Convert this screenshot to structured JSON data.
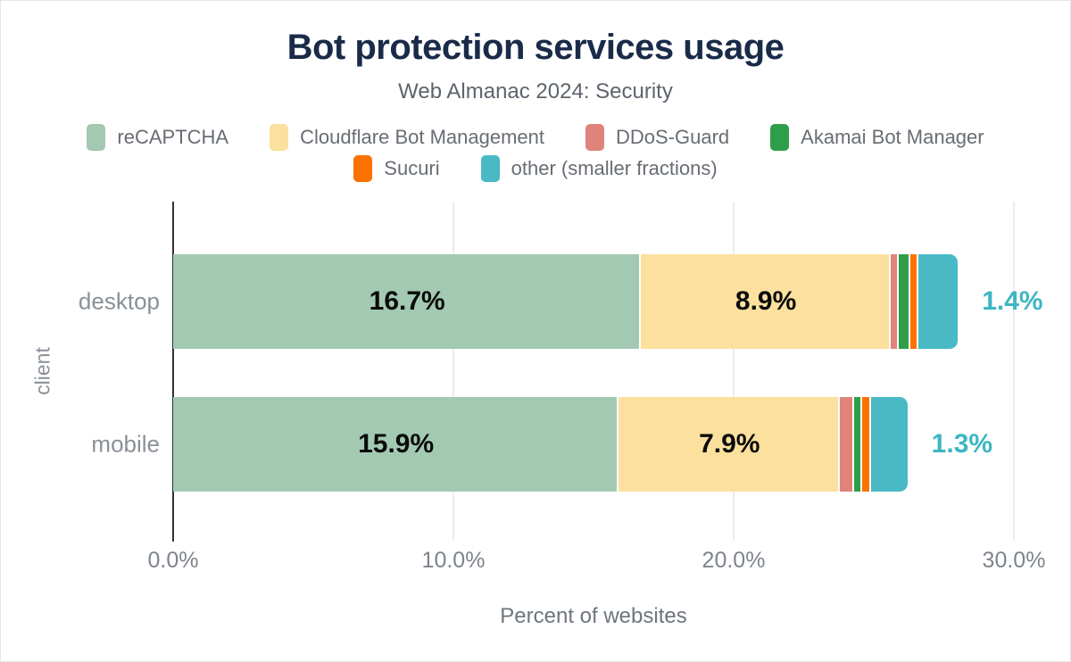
{
  "chart_data": {
    "type": "bar",
    "orientation": "horizontal-stacked",
    "title": "Bot protection services usage",
    "subtitle": "Web Almanac 2024: Security",
    "categories": [
      "desktop",
      "mobile"
    ],
    "series": [
      {
        "name": "reCAPTCHA",
        "color": "#a3c9b3",
        "values": [
          16.7,
          15.9
        ],
        "labels": [
          "16.7%",
          "15.9%"
        ]
      },
      {
        "name": "Cloudflare Bot Management",
        "color": "#fbe09e",
        "values": [
          8.9,
          7.9
        ],
        "labels": [
          "8.9%",
          "7.9%"
        ]
      },
      {
        "name": "DDoS-Guard",
        "color": "#e0837a",
        "values": [
          0.3,
          0.5
        ],
        "labels": null
      },
      {
        "name": "Akamai Bot Manager",
        "color": "#2f9e4a",
        "values": [
          0.4,
          0.3
        ],
        "labels": null
      },
      {
        "name": "Sucuri",
        "color": "#fa7200",
        "values": [
          0.3,
          0.3
        ],
        "labels": null
      },
      {
        "name": "other (smaller fractions)",
        "color": "#49b9c5",
        "values": [
          1.4,
          1.3
        ],
        "labels": null
      }
    ],
    "outside_labels": {
      "values": [
        "1.4%",
        "1.3%"
      ],
      "color": "#3db6c3"
    },
    "xlabel": "Percent of websites",
    "ylabel": "client",
    "xlim": [
      0,
      30
    ],
    "xticks": [
      {
        "value": 0,
        "label": "0.0%"
      },
      {
        "value": 10,
        "label": "10.0%"
      },
      {
        "value": 20,
        "label": "20.0%"
      },
      {
        "value": 30,
        "label": "30.0%"
      }
    ],
    "grid": "vertical-gridlines-at-10-20-30",
    "legend_position": "top-two-rows",
    "colors": {
      "title": "#1a2b49",
      "subtitle": "#5d646c",
      "inside_label": "#0a0a0a",
      "axis_line": "#333333",
      "gridline": "#ececec"
    }
  }
}
